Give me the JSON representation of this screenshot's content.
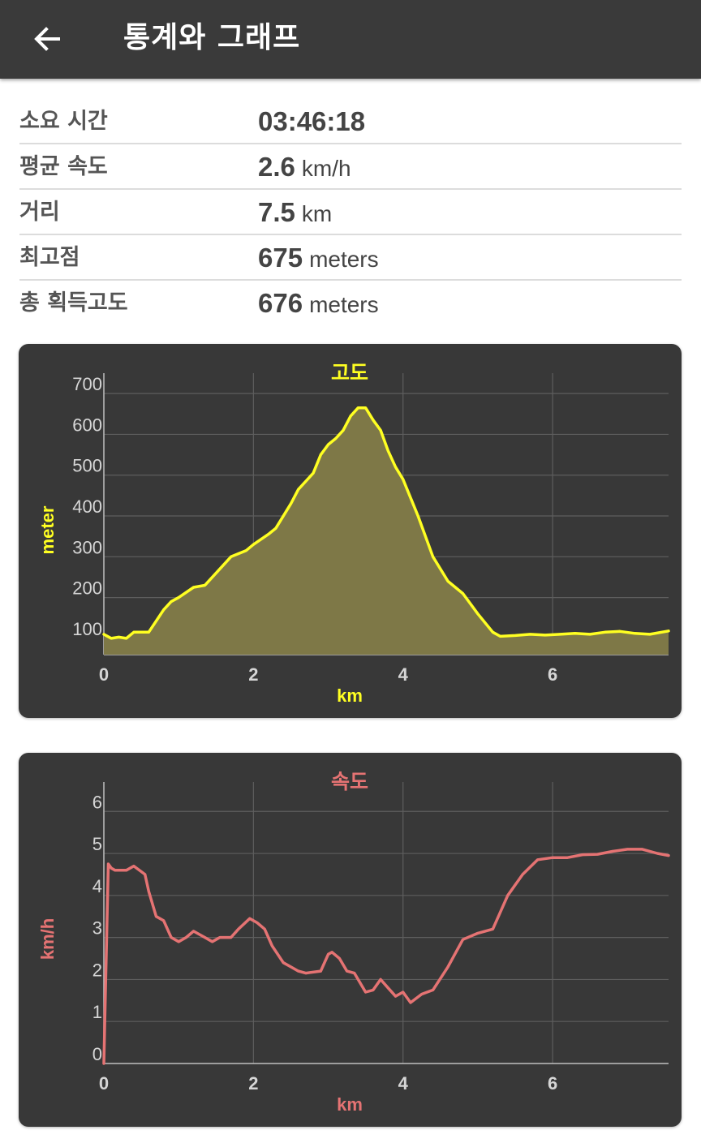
{
  "appbar": {
    "title": "통계와 그래프",
    "back_icon": "arrow-left-icon"
  },
  "stats": [
    {
      "label": "소요 시간",
      "value": "03:46:18",
      "unit": ""
    },
    {
      "label": "평균 속도",
      "value": "2.6",
      "unit": "km/h"
    },
    {
      "label": "거리",
      "value": "7.5",
      "unit": "km"
    },
    {
      "label": "최고점",
      "value": "675",
      "unit": "meters"
    },
    {
      "label": "총 획득고도",
      "value": "676",
      "unit": "meters"
    }
  ],
  "chart_data": [
    {
      "type": "area",
      "title": "고도",
      "xlabel": "km",
      "ylabel": "meter",
      "xlim": [
        0,
        7.55
      ],
      "ylim": [
        60,
        750
      ],
      "xticks": [
        "0",
        "2",
        "4",
        "6"
      ],
      "xtick_values": [
        0,
        2,
        4,
        6
      ],
      "yticks": [
        "100",
        "200",
        "300",
        "400",
        "500",
        "600",
        "700"
      ],
      "ytick_values": [
        100,
        200,
        300,
        400,
        500,
        600,
        700
      ],
      "grid": true,
      "color": "#ffff22",
      "fill": "#7e7847",
      "x": [
        0,
        0.1,
        0.2,
        0.3,
        0.4,
        0.6,
        0.8,
        0.9,
        1.0,
        1.2,
        1.35,
        1.5,
        1.7,
        1.9,
        2.0,
        2.2,
        2.3,
        2.5,
        2.6,
        2.8,
        2.9,
        3.0,
        3.1,
        3.2,
        3.3,
        3.4,
        3.5,
        3.6,
        3.7,
        3.8,
        3.9,
        4.0,
        4.2,
        4.4,
        4.6,
        4.8,
        4.9,
        5.0,
        5.2,
        5.3,
        5.5,
        5.7,
        5.9,
        6.1,
        6.3,
        6.5,
        6.7,
        6.9,
        7.1,
        7.3,
        7.55
      ],
      "y": [
        110,
        100,
        103,
        100,
        115,
        115,
        170,
        190,
        200,
        225,
        230,
        260,
        300,
        315,
        330,
        355,
        370,
        430,
        465,
        505,
        550,
        575,
        590,
        610,
        645,
        665,
        665,
        635,
        610,
        560,
        520,
        490,
        400,
        300,
        240,
        210,
        185,
        160,
        115,
        105,
        107,
        110,
        108,
        110,
        112,
        110,
        115,
        117,
        112,
        110,
        118
      ]
    },
    {
      "type": "line",
      "title": "속도",
      "xlabel": "km",
      "ylabel": "km/h",
      "xlim": [
        0,
        7.55
      ],
      "ylim": [
        0,
        6.7
      ],
      "xticks": [
        "0",
        "2",
        "4",
        "6"
      ],
      "xtick_values": [
        0,
        2,
        4,
        6
      ],
      "yticks": [
        "0",
        "1",
        "2",
        "3",
        "4",
        "5",
        "6"
      ],
      "ytick_values": [
        0,
        1,
        2,
        3,
        4,
        5,
        6
      ],
      "grid": true,
      "color": "#e57373",
      "x": [
        0,
        0.06,
        0.1,
        0.15,
        0.3,
        0.4,
        0.55,
        0.6,
        0.7,
        0.8,
        0.9,
        1.0,
        1.1,
        1.2,
        1.3,
        1.45,
        1.55,
        1.7,
        1.8,
        1.95,
        2.05,
        2.15,
        2.25,
        2.4,
        2.5,
        2.6,
        2.7,
        2.9,
        3.0,
        3.05,
        3.15,
        3.25,
        3.35,
        3.5,
        3.6,
        3.7,
        3.8,
        3.9,
        4.0,
        4.1,
        4.25,
        4.4,
        4.6,
        4.8,
        5.0,
        5.2,
        5.4,
        5.6,
        5.8,
        6.0,
        6.2,
        6.4,
        6.6,
        6.8,
        7.0,
        7.2,
        7.4,
        7.55
      ],
      "y": [
        0,
        4.75,
        4.65,
        4.6,
        4.6,
        4.7,
        4.5,
        4.1,
        3.5,
        3.4,
        3.0,
        2.9,
        3.0,
        3.15,
        3.05,
        2.9,
        3.0,
        3.0,
        3.2,
        3.45,
        3.35,
        3.2,
        2.8,
        2.4,
        2.3,
        2.2,
        2.15,
        2.2,
        2.6,
        2.65,
        2.5,
        2.2,
        2.15,
        1.7,
        1.75,
        2.0,
        1.8,
        1.6,
        1.7,
        1.45,
        1.65,
        1.75,
        2.3,
        2.95,
        3.1,
        3.2,
        4.0,
        4.5,
        4.85,
        4.9,
        4.9,
        4.97,
        4.98,
        5.05,
        5.1,
        5.1,
        5.0,
        4.95
      ]
    }
  ]
}
